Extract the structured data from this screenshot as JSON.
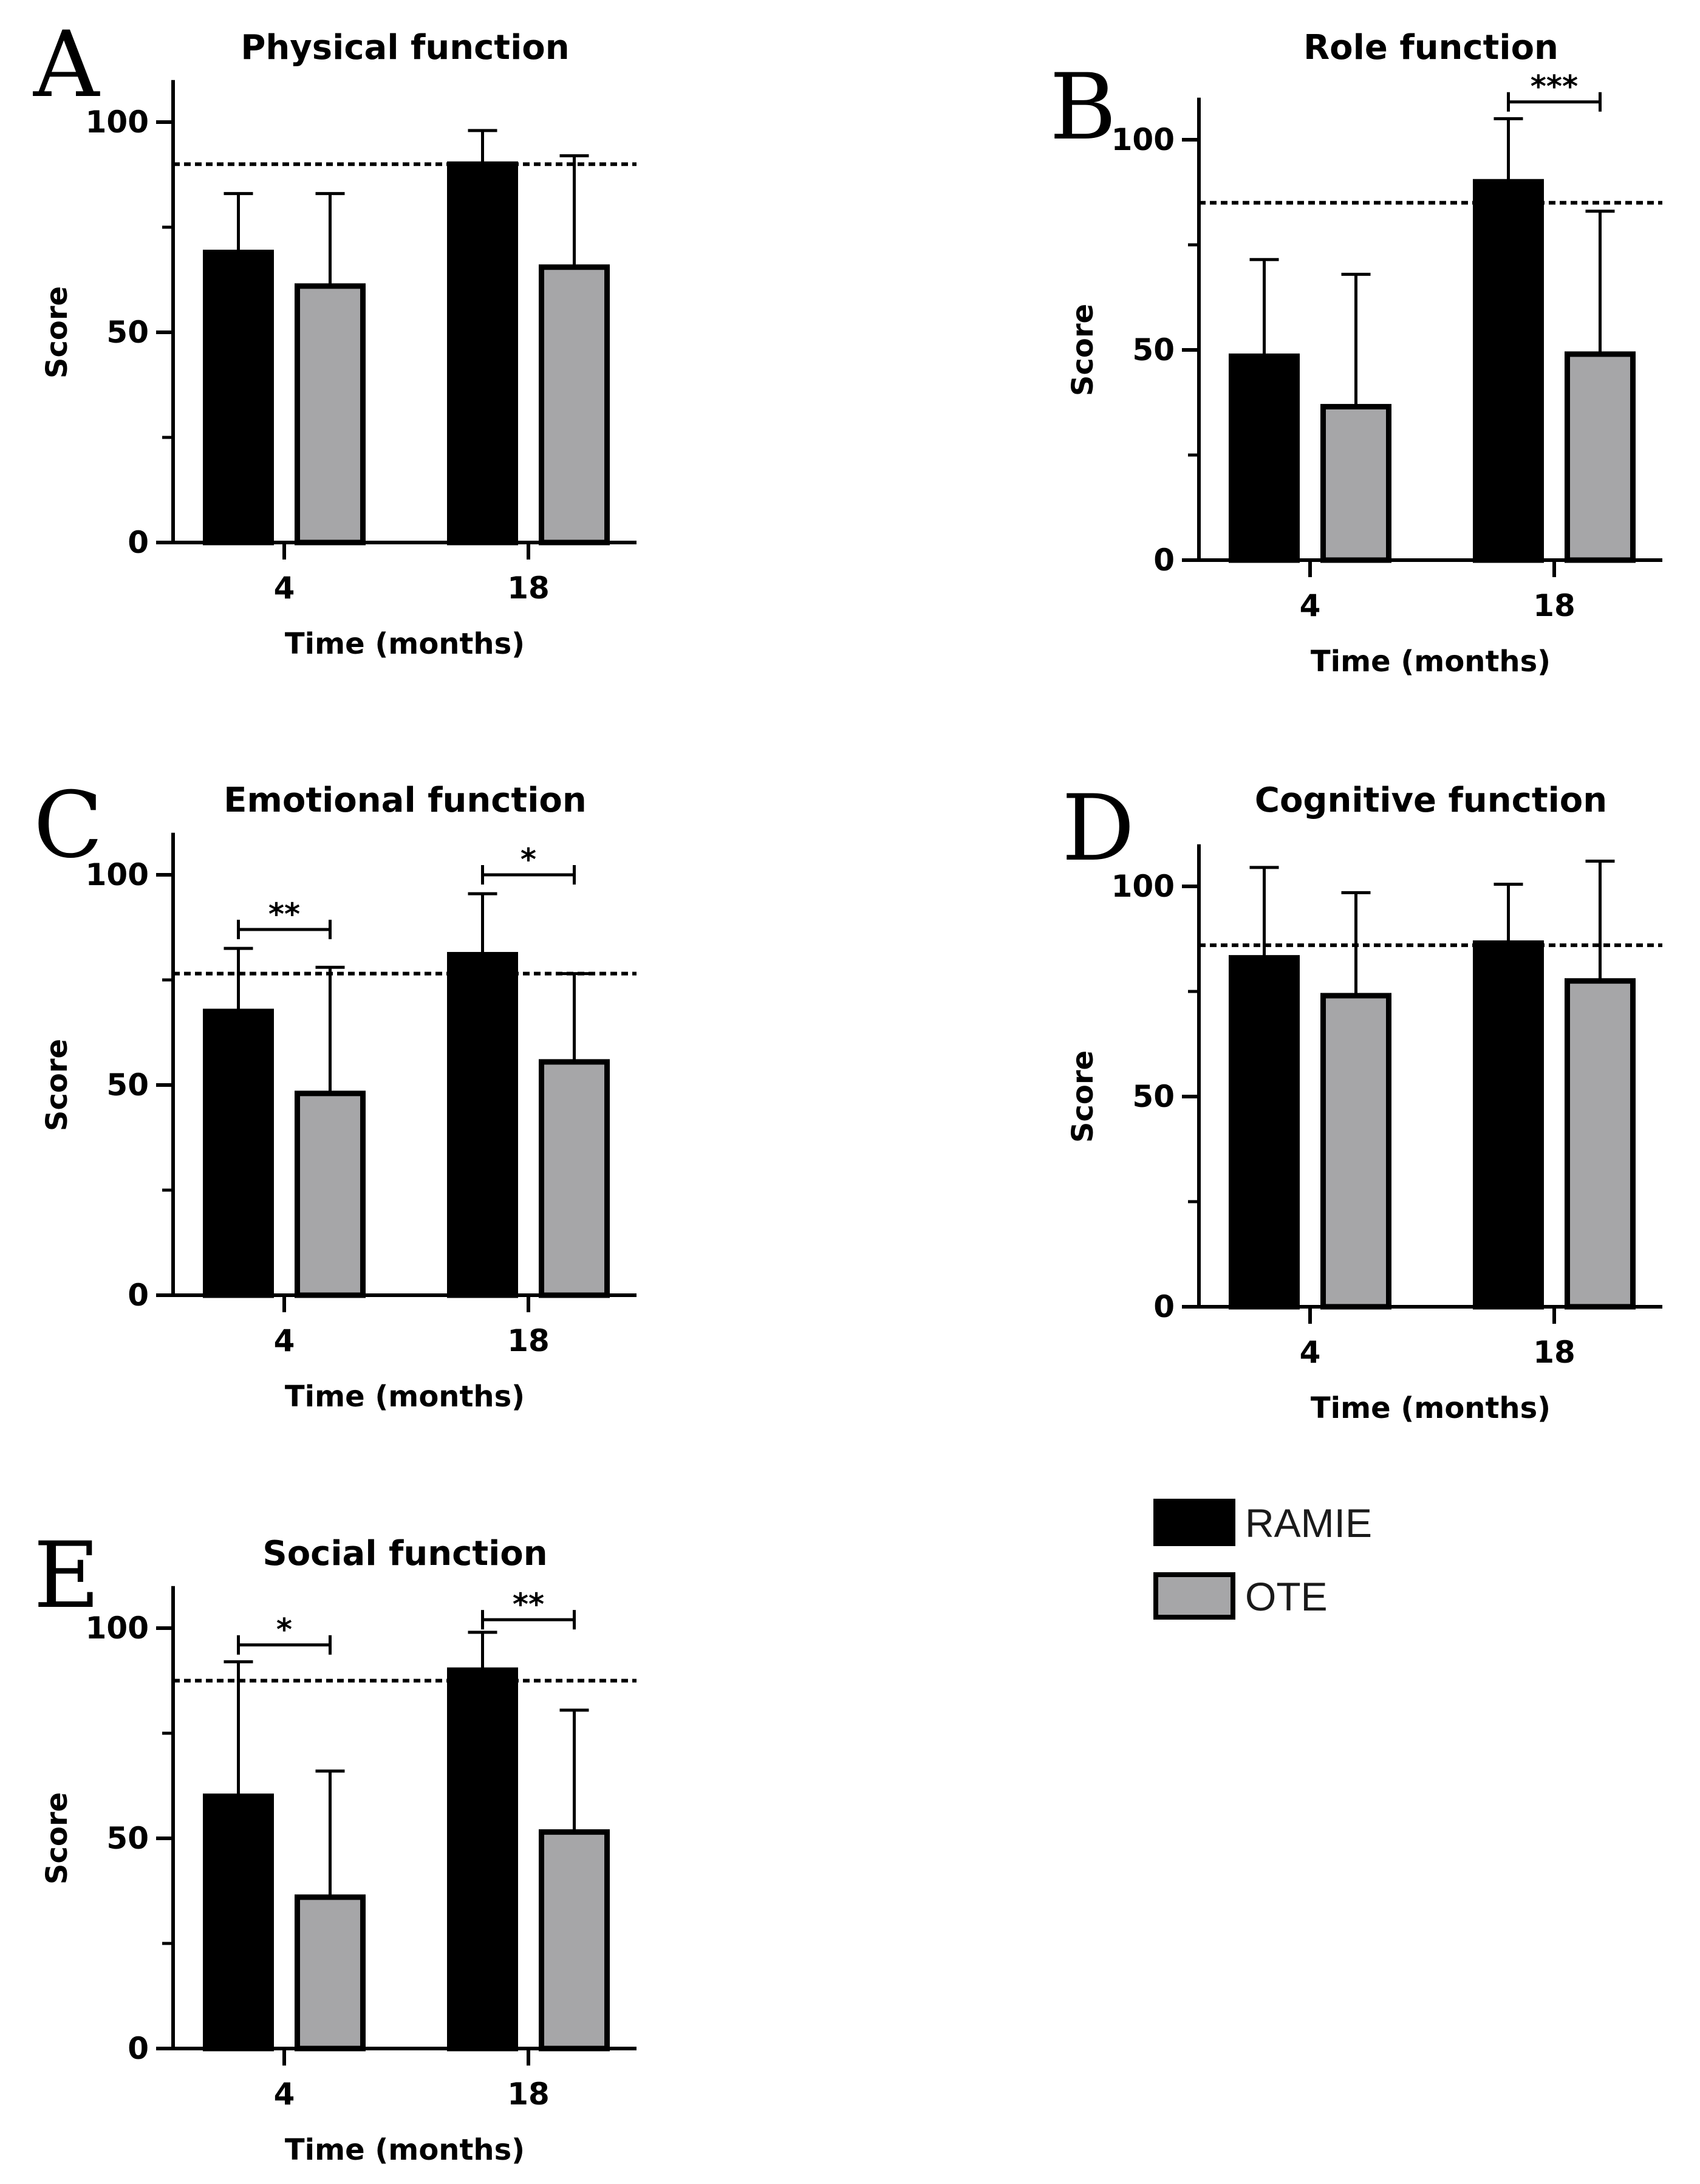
{
  "colors": {
    "ramie": "#000000",
    "ote": "#a6a6a8",
    "outline": "#000000"
  },
  "legend": [
    {
      "label": "RAMIE",
      "color": "#000000"
    },
    {
      "label": "OTE",
      "color": "#a6a6a8"
    }
  ],
  "chart_data": [
    {
      "panel": "A",
      "type": "bar",
      "title": "Physical function",
      "xlabel": "Time (months)",
      "ylabel": "Score",
      "categories": [
        "4",
        "18"
      ],
      "ylim": [
        0,
        110
      ],
      "yticks": [
        0,
        50,
        100
      ],
      "yminor": [
        25,
        75
      ],
      "series": [
        {
          "name": "RAMIE",
          "values": [
            69,
            90
          ],
          "err": [
            83,
            98
          ]
        },
        {
          "name": "OTE",
          "values": [
            61,
            65.5
          ],
          "err": [
            83,
            92
          ]
        }
      ],
      "reference_line": 90,
      "significance": []
    },
    {
      "panel": "B",
      "type": "bar",
      "title": "Role function",
      "xlabel": "Time (months)",
      "ylabel": "Score",
      "categories": [
        "4",
        "18"
      ],
      "ylim": [
        0,
        110
      ],
      "yticks": [
        0,
        50,
        100
      ],
      "yminor": [
        25,
        75
      ],
      "series": [
        {
          "name": "RAMIE",
          "values": [
            48.5,
            90
          ],
          "err": [
            71.5,
            105
          ]
        },
        {
          "name": "OTE",
          "values": [
            36.5,
            49
          ],
          "err": [
            68,
            83
          ]
        }
      ],
      "reference_line": 85,
      "significance": [
        {
          "category": 1,
          "label": "***",
          "y": 109
        }
      ]
    },
    {
      "panel": "C",
      "type": "bar",
      "title": "Emotional function",
      "xlabel": "Time (months)",
      "ylabel": "Score",
      "categories": [
        "4",
        "18"
      ],
      "ylim": [
        0,
        110
      ],
      "yticks": [
        0,
        50,
        100
      ],
      "yminor": [
        25,
        75
      ],
      "series": [
        {
          "name": "RAMIE",
          "values": [
            67.5,
            81
          ],
          "err": [
            82.5,
            95.5
          ]
        },
        {
          "name": "OTE",
          "values": [
            48,
            55.5
          ],
          "err": [
            78,
            76.5
          ]
        }
      ],
      "reference_line": 76.5,
      "significance": [
        {
          "category": 0,
          "label": "**",
          "y": 87
        },
        {
          "category": 1,
          "label": "*",
          "y": 100
        }
      ]
    },
    {
      "panel": "D",
      "type": "bar",
      "title": "Cognitive function",
      "xlabel": "Time (months)",
      "ylabel": "Score",
      "categories": [
        "4",
        "18"
      ],
      "ylim": [
        0,
        110
      ],
      "yticks": [
        0,
        50,
        100
      ],
      "yminor": [
        25,
        75
      ],
      "series": [
        {
          "name": "RAMIE",
          "values": [
            83,
            86.5
          ],
          "err": [
            104.5,
            100.5
          ]
        },
        {
          "name": "OTE",
          "values": [
            74,
            77.5
          ],
          "err": [
            98.5,
            106
          ]
        }
      ],
      "reference_line": 86,
      "significance": []
    },
    {
      "panel": "E",
      "type": "bar",
      "title": "Social function",
      "xlabel": "Time (months)",
      "ylabel": "Score",
      "categories": [
        "4",
        "18"
      ],
      "ylim": [
        0,
        110
      ],
      "yticks": [
        0,
        50,
        100
      ],
      "yminor": [
        25,
        75
      ],
      "series": [
        {
          "name": "RAMIE",
          "values": [
            60,
            90
          ],
          "err": [
            92,
            99
          ]
        },
        {
          "name": "OTE",
          "values": [
            36,
            51.5
          ],
          "err": [
            66,
            80.5
          ]
        }
      ],
      "reference_line": 87.5,
      "significance": [
        {
          "category": 0,
          "label": "*",
          "y": 96
        },
        {
          "category": 1,
          "label": "**",
          "y": 102
        }
      ]
    }
  ]
}
